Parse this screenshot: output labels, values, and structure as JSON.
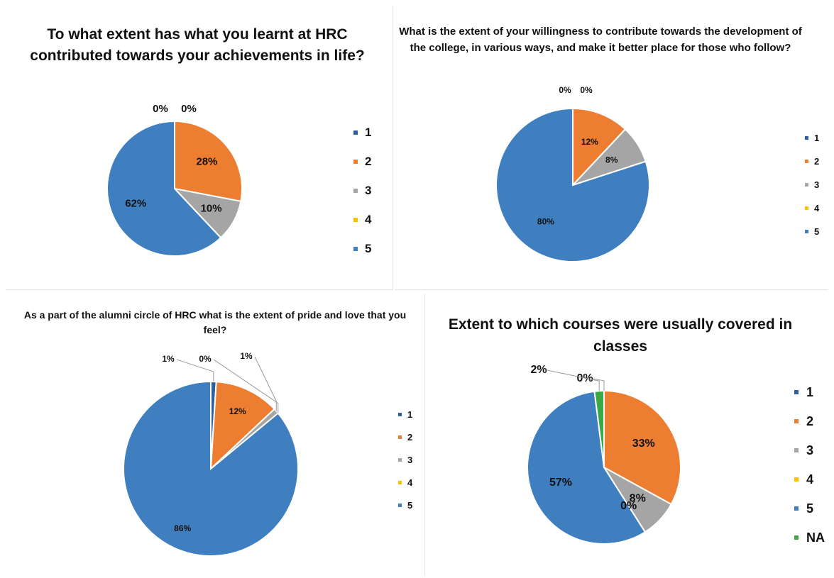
{
  "colors": {
    "1": "#2f5f9e",
    "2": "#ed7d31",
    "3": "#a5a5a5",
    "4": "#ffc000",
    "5": "#3f7fbf",
    "NA": "#3aa845"
  },
  "chart_data": [
    {
      "type": "pie",
      "title": "To what extent has what you learnt at HRC contributed towards your achievements in life?",
      "legend": "right",
      "slices": [
        {
          "label": "1",
          "value": 0,
          "text": "0%"
        },
        {
          "label": "2",
          "value": 28,
          "text": "28%"
        },
        {
          "label": "3",
          "value": 10,
          "text": "10%"
        },
        {
          "label": "4",
          "value": 0,
          "text": "0%"
        },
        {
          "label": "5",
          "value": 62,
          "text": "62%"
        }
      ]
    },
    {
      "type": "pie",
      "title": "What is the extent of your willingness to contribute towards the development of the college, in various ways, and make it better place for those who follow?",
      "legend": "right",
      "slices": [
        {
          "label": "1",
          "value": 0,
          "text": "0%"
        },
        {
          "label": "2",
          "value": 12,
          "text": "12%"
        },
        {
          "label": "3",
          "value": 8,
          "text": "8%"
        },
        {
          "label": "4",
          "value": 0,
          "text": "0%"
        },
        {
          "label": "5",
          "value": 80,
          "text": "80%"
        }
      ]
    },
    {
      "type": "pie",
      "title": "As a part of the alumni circle of HRC what is the extent of pride and love that you feel?",
      "legend": "right",
      "slices": [
        {
          "label": "1",
          "value": 1,
          "text": "1%"
        },
        {
          "label": "2",
          "value": 12,
          "text": "12%"
        },
        {
          "label": "3",
          "value": 1,
          "text": "1%"
        },
        {
          "label": "4",
          "value": 0,
          "text": "0%"
        },
        {
          "label": "5",
          "value": 86,
          "text": "86%"
        }
      ]
    },
    {
      "type": "pie",
      "title": "Extent to which courses were usually covered in classes",
      "legend": "right",
      "slices": [
        {
          "label": "1",
          "value": 0,
          "text": "0%"
        },
        {
          "label": "2",
          "value": 33,
          "text": "33%"
        },
        {
          "label": "3",
          "value": 8,
          "text": "8%"
        },
        {
          "label": "4",
          "value": 0,
          "text": "0%"
        },
        {
          "label": "5",
          "value": 57,
          "text": "57%"
        },
        {
          "label": "NA",
          "value": 2,
          "text": "2%"
        }
      ]
    }
  ]
}
